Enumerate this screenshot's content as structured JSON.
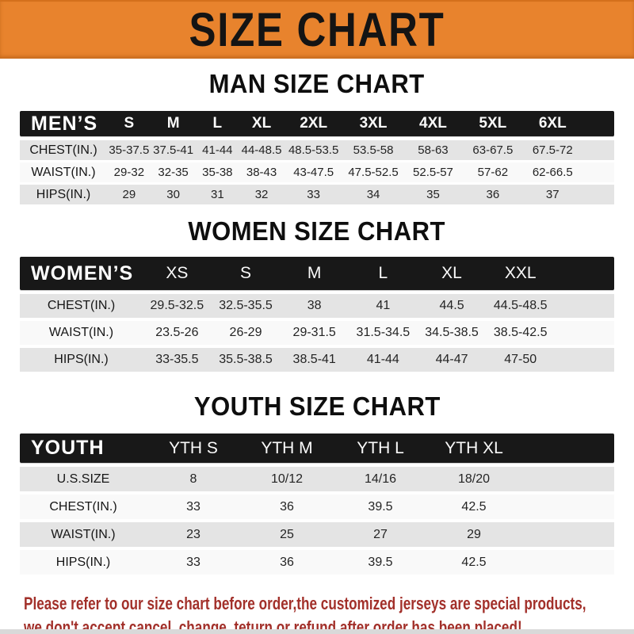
{
  "banner": {
    "title": "SIZE CHART"
  },
  "colors": {
    "banner_bg": "#E8832D",
    "header_bar_bg": "#181818",
    "row_gray": "#E4E4E4",
    "row_white": "#F9F9F9",
    "note_red": "#A2302A"
  },
  "men": {
    "section_title": "MAN SIZE CHART",
    "label": "MEN’S",
    "sizes": [
      "S",
      "M",
      "L",
      "XL",
      "2XL",
      "3XL",
      "4XL",
      "5XL",
      "6XL"
    ],
    "rows": [
      {
        "label": "CHEST(IN.)",
        "values": [
          "35-37.5",
          "37.5-41",
          "41-44",
          "44-48.5",
          "48.5-53.5",
          "53.5-58",
          "58-63",
          "63-67.5",
          "67.5-72"
        ]
      },
      {
        "label": "WAIST(IN.)",
        "values": [
          "29-32",
          "32-35",
          "35-38",
          "38-43",
          "43-47.5",
          "47.5-52.5",
          "52.5-57",
          "57-62",
          "62-66.5"
        ]
      },
      {
        "label": "HIPS(IN.)",
        "values": [
          "29",
          "30",
          "31",
          "32",
          "33",
          "34",
          "35",
          "36",
          "37"
        ]
      }
    ]
  },
  "women": {
    "section_title": "WOMEN SIZE CHART",
    "label": "WOMEN’S",
    "sizes": [
      "XS",
      "S",
      "M",
      "L",
      "XL",
      "XXL"
    ],
    "rows": [
      {
        "label": "CHEST(IN.)",
        "values": [
          "29.5-32.5",
          "32.5-35.5",
          "38",
          "41",
          "44.5",
          "44.5-48.5"
        ]
      },
      {
        "label": "WAIST(IN.)",
        "values": [
          "23.5-26",
          "26-29",
          "29-31.5",
          "31.5-34.5",
          "34.5-38.5",
          "38.5-42.5"
        ]
      },
      {
        "label": "HIPS(IN.)",
        "values": [
          "33-35.5",
          "35.5-38.5",
          "38.5-41",
          "41-44",
          "44-47",
          "47-50"
        ]
      }
    ]
  },
  "youth": {
    "section_title": "YOUTH SIZE CHART",
    "label": "YOUTH",
    "sizes": [
      "YTH S",
      "YTH M",
      "YTH L",
      "YTH XL"
    ],
    "rows": [
      {
        "label": "U.S.SIZE",
        "values": [
          "8",
          "10/12",
          "14/16",
          "18/20"
        ]
      },
      {
        "label": "CHEST(IN.)",
        "values": [
          "33",
          "36",
          "39.5",
          "42.5"
        ]
      },
      {
        "label": "WAIST(IN.)",
        "values": [
          "23",
          "25",
          "27",
          "29"
        ]
      },
      {
        "label": "HIPS(IN.)",
        "values": [
          "33",
          "36",
          "39.5",
          "42.5"
        ]
      }
    ]
  },
  "note": {
    "line1": "Please refer to our size chart before order,the customized jerseys are special products,",
    "line2": "we don't accept cancel, change, teturn or refund after order has been placed!"
  }
}
